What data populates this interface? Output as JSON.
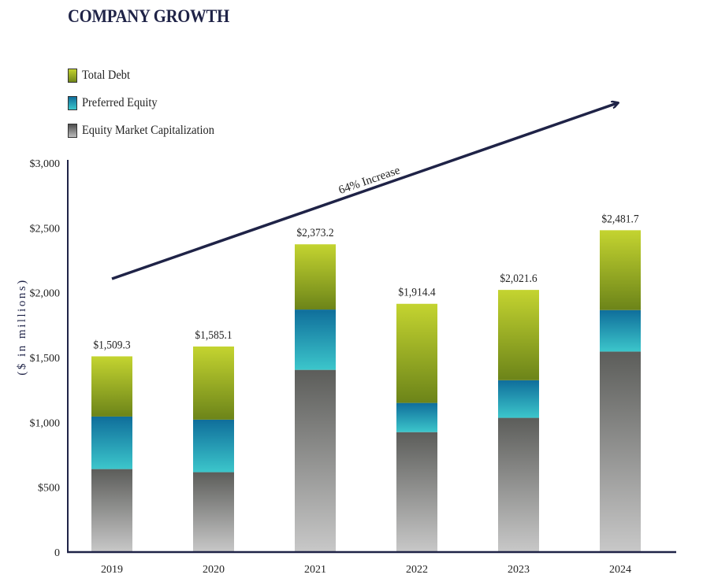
{
  "chart_data": {
    "type": "bar",
    "stacked": true,
    "title": "COMPANY GROWTH",
    "ylabel": "($ in millions)",
    "xlabel": "",
    "ylim": [
      0,
      3000
    ],
    "yticks": [
      0,
      500,
      1000,
      1500,
      2000,
      2500,
      3000
    ],
    "ytick_labels": [
      "0",
      "$500",
      "$1,000",
      "$1,500",
      "$2,000",
      "$2,500",
      "$3,000"
    ],
    "categories": [
      "2019",
      "2020",
      "2021",
      "2022",
      "2023",
      "2024"
    ],
    "series": [
      {
        "name": "Equity Market Capitalization",
        "values": [
          640,
          616,
          1405,
          925,
          1035,
          1546
        ]
      },
      {
        "name": "Preferred Equity",
        "values": [
          405,
          405,
          465,
          225,
          290,
          320
        ]
      },
      {
        "name": "Total Debt",
        "values": [
          464.3,
          564.1,
          503.2,
          764.4,
          696.6,
          615.7
        ]
      }
    ],
    "totals": [
      1509.3,
      1585.1,
      2373.2,
      1914.4,
      2021.6,
      2481.7
    ],
    "total_labels": [
      "$1,509.3",
      "$1,585.1",
      "$2,373.2",
      "$1,914.4",
      "$2,021.6",
      "$2,481.7"
    ],
    "annotation": "64% Increase",
    "legend_position": "top-left",
    "grid": false,
    "colors": {
      "Equity Market Capitalization": [
        "#5c5d5a",
        "#c6c6c6"
      ],
      "Preferred Equity": [
        "#0f6e9b",
        "#3cc6cb"
      ],
      "Total Debt": [
        "#c4d430",
        "#6c8419"
      ],
      "axis": "#1f2347",
      "title": "#1f2347"
    }
  }
}
